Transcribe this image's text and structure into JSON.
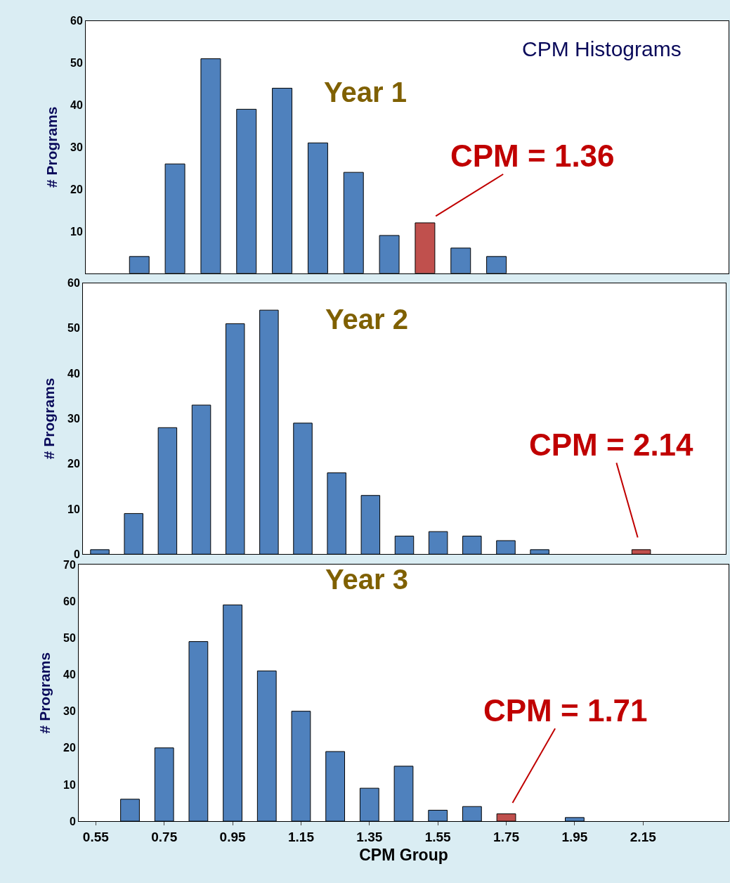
{
  "chart_data": [
    {
      "type": "bar",
      "title": "CPM Histograms",
      "ylabel": "# Programs",
      "annotations": [
        "Year 1",
        "CPM = 1.36"
      ],
      "categories": [
        null,
        null,
        null,
        null,
        null,
        null,
        null,
        null,
        null,
        null,
        null,
        null,
        null,
        null,
        null,
        null,
        null,
        null
      ],
      "series": [
        {
          "color": "#4f81bd",
          "values": [
            0,
            4,
            26,
            51,
            39,
            44,
            31,
            24,
            9,
            12,
            6,
            4,
            0,
            0,
            0,
            0,
            0,
            0
          ],
          "colors": [
            "#4f81bd",
            "#4f81bd",
            "#4f81bd",
            "#4f81bd",
            "#4f81bd",
            "#4f81bd",
            "#4f81bd",
            "#4f81bd",
            "#4f81bd",
            "#c0504d",
            "#4f81bd",
            "#4f81bd",
            "#4f81bd",
            "#4f81bd",
            "#4f81bd",
            "#4f81bd",
            "#4f81bd",
            "#4f81bd"
          ]
        }
      ],
      "ylim": [
        0,
        60
      ],
      "yticks": [
        10,
        20,
        30,
        40,
        50,
        60
      ],
      "tick_labels": "y"
    },
    {
      "type": "bar",
      "ylabel": "# Programs",
      "annotations": [
        "Year 2",
        "CPM = 2.14"
      ],
      "categories": [
        null,
        null,
        null,
        null,
        null,
        null,
        null,
        null,
        null,
        null,
        null,
        null,
        null,
        null,
        null,
        null,
        null,
        null,
        null
      ],
      "series": [
        {
          "color": "#4f81bd",
          "values": [
            1,
            9,
            28,
            33,
            51,
            54,
            29,
            18,
            13,
            4,
            5,
            4,
            3,
            1,
            0,
            0,
            1,
            0,
            0
          ],
          "colors": [
            "#4f81bd",
            "#4f81bd",
            "#4f81bd",
            "#4f81bd",
            "#4f81bd",
            "#4f81bd",
            "#4f81bd",
            "#4f81bd",
            "#4f81bd",
            "#4f81bd",
            "#4f81bd",
            "#4f81bd",
            "#4f81bd",
            "#4f81bd",
            "#4f81bd",
            "#4f81bd",
            "#c0504d",
            "#4f81bd",
            "#4f81bd"
          ]
        }
      ],
      "ylim": [
        0,
        60
      ],
      "yticks": [
        0,
        10,
        20,
        30,
        40,
        50,
        60
      ],
      "tick_labels": "y"
    },
    {
      "type": "bar",
      "xlabel": "CPM Group",
      "ylabel": "# Programs",
      "annotations": [
        "Year 3",
        {
          "text": "CPM = 1.71",
          "x": "1.75",
          "y": 2
        }
      ],
      "categories": [
        "0.55",
        null,
        "0.75",
        null,
        "0.95",
        null,
        "1.15",
        null,
        "1.35",
        null,
        "1.55",
        null,
        "1.75",
        null,
        "1.95",
        null,
        "2.15",
        null,
        null
      ],
      "series": [
        {
          "color": "#4f81bd",
          "values": [
            0,
            6,
            20,
            49,
            59,
            41,
            30,
            19,
            9,
            15,
            3,
            4,
            2,
            0,
            1,
            0,
            0,
            0,
            0
          ],
          "colors": [
            "#4f81bd",
            "#4f81bd",
            "#4f81bd",
            "#4f81bd",
            "#4f81bd",
            "#4f81bd",
            "#4f81bd",
            "#4f81bd",
            "#4f81bd",
            "#4f81bd",
            "#4f81bd",
            "#4f81bd",
            "#c0504d",
            "#4f81bd",
            "#4f81bd",
            "#4f81bd",
            "#4f81bd",
            "#4f81bd",
            "#4f81bd"
          ]
        }
      ],
      "ylim": [
        0,
        70
      ],
      "yticks": [
        0,
        10,
        20,
        30,
        40,
        50,
        60,
        70
      ]
    }
  ]
}
